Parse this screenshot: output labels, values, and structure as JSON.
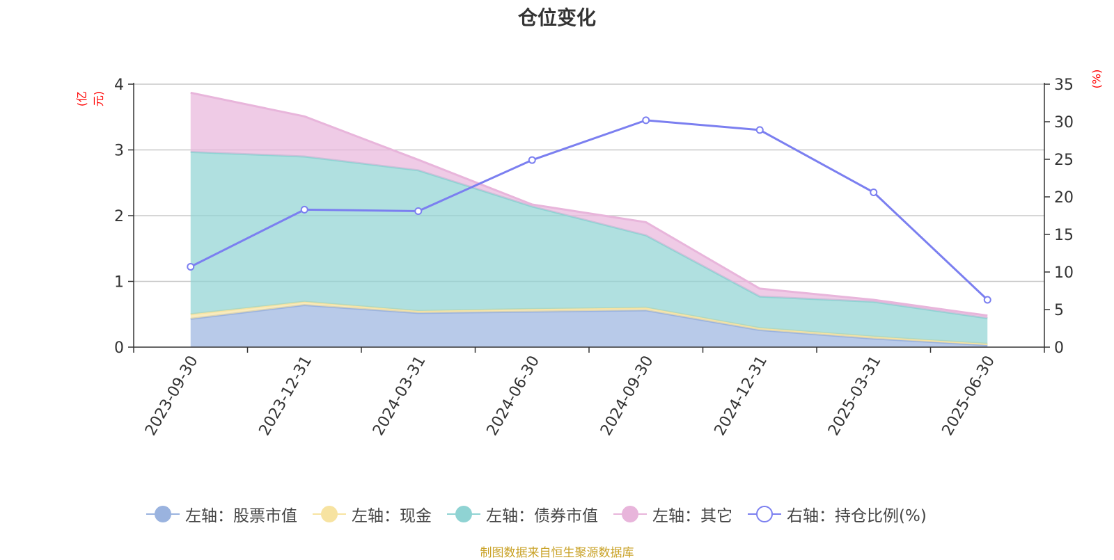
{
  "title": "仓位变化",
  "left_unit": "(亿元)",
  "right_unit": "(%)",
  "source": "制图数据来自恒生聚源数据库",
  "chart_data": {
    "type": "area",
    "title": "仓位变化",
    "categories": [
      "2023-09-30",
      "2023-12-31",
      "2024-03-31",
      "2024-06-30",
      "2024-09-30",
      "2024-12-31",
      "2025-03-31",
      "2025-06-30"
    ],
    "left_axis": {
      "unit": "(亿元)",
      "ylim": [
        0,
        4
      ],
      "ticks": [
        0,
        1,
        2,
        3,
        4
      ]
    },
    "right_axis": {
      "unit": "(%)",
      "ylim": [
        0,
        35
      ],
      "ticks": [
        0,
        5,
        10,
        15,
        20,
        25,
        30,
        35
      ]
    },
    "stacked": true,
    "grid": true,
    "legend_position": "bottom",
    "series": [
      {
        "name": "左轴：股票市值",
        "axis": "left",
        "kind": "area",
        "color": "#9ab3df",
        "values": [
          0.43,
          0.64,
          0.52,
          0.54,
          0.56,
          0.26,
          0.13,
          0.03
        ]
      },
      {
        "name": "左轴：现金",
        "axis": "left",
        "kind": "area",
        "color": "#f7e3a1",
        "values": [
          0.07,
          0.05,
          0.03,
          0.04,
          0.04,
          0.03,
          0.03,
          0.02
        ]
      },
      {
        "name": "左轴：债券市值",
        "axis": "left",
        "kind": "area",
        "color": "#8fd3d3",
        "values": [
          2.47,
          2.21,
          2.14,
          1.56,
          1.1,
          0.48,
          0.53,
          0.39
        ]
      },
      {
        "name": "左轴：其它",
        "axis": "left",
        "kind": "area",
        "color": "#e8b5db",
        "values": [
          0.9,
          0.61,
          0.16,
          0.03,
          0.2,
          0.12,
          0.03,
          0.04
        ]
      },
      {
        "name": "右轴：持仓比例(%)",
        "axis": "right",
        "kind": "line",
        "color": "#7b7ff0",
        "values": [
          10.7,
          18.3,
          18.1,
          24.9,
          30.2,
          28.9,
          20.6,
          6.3
        ]
      }
    ]
  }
}
